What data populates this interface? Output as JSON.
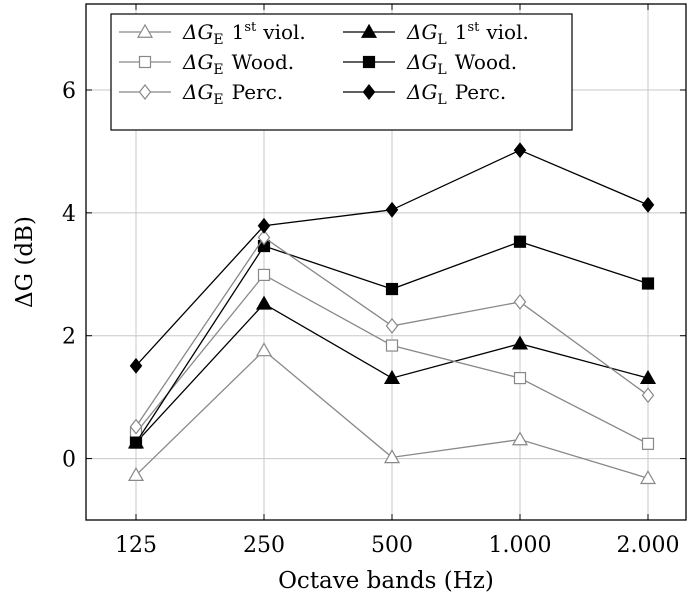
{
  "chart_data": {
    "type": "line",
    "categories": [
      "125",
      "250",
      "500",
      "1.000",
      "2.000"
    ],
    "xlabel": "Octave bands (Hz)",
    "ylabel": "ΔG (dB)",
    "ylim": [
      -1,
      7.4
    ],
    "yticks": [
      "0",
      "2",
      "4",
      "6"
    ],
    "grid": true,
    "legend_position": "top",
    "series": [
      {
        "name": "ΔG_E 1st viol.",
        "name_parts": {
          "delta": "ΔG",
          "sub": "E",
          "suffix_main": "1",
          "suffix_sup": "st",
          "suffix_rest": "viol."
        },
        "values": [
          -0.27,
          1.76,
          0.02,
          0.31,
          -0.32
        ],
        "marker": "triangle-open",
        "color": "#888888"
      },
      {
        "name": "ΔG_L 1st viol.",
        "name_parts": {
          "delta": "ΔG",
          "sub": "L",
          "suffix_main": "1",
          "suffix_sup": "st",
          "suffix_rest": "viol."
        },
        "values": [
          0.26,
          2.52,
          1.31,
          1.87,
          1.31
        ],
        "marker": "triangle-filled",
        "color": "#000000"
      },
      {
        "name": "ΔG_E Wood.",
        "name_parts": {
          "delta": "ΔG",
          "sub": "E",
          "suffix_main": "Wood.",
          "suffix_sup": "",
          "suffix_rest": ""
        },
        "values": [
          0.42,
          2.99,
          1.84,
          1.31,
          0.24
        ],
        "marker": "square-open",
        "color": "#888888"
      },
      {
        "name": "ΔG_L Wood.",
        "name_parts": {
          "delta": "ΔG",
          "sub": "L",
          "suffix_main": "Wood.",
          "suffix_sup": "",
          "suffix_rest": ""
        },
        "values": [
          0.26,
          3.46,
          2.76,
          3.53,
          2.85
        ],
        "marker": "square-filled",
        "color": "#000000"
      },
      {
        "name": "ΔG_E Perc.",
        "name_parts": {
          "delta": "ΔG",
          "sub": "E",
          "suffix_main": "Perc.",
          "suffix_sup": "",
          "suffix_rest": ""
        },
        "values": [
          0.52,
          3.6,
          2.16,
          2.55,
          1.03
        ],
        "marker": "diamond-open",
        "color": "#888888"
      },
      {
        "name": "ΔG_L Perc.",
        "name_parts": {
          "delta": "ΔG",
          "sub": "L",
          "suffix_main": "Perc.",
          "suffix_sup": "",
          "suffix_rest": ""
        },
        "values": [
          1.51,
          3.79,
          4.05,
          5.02,
          4.13
        ],
        "marker": "diamond-filled",
        "color": "#000000"
      }
    ]
  }
}
